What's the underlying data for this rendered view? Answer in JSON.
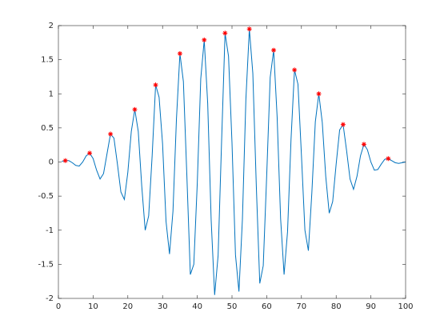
{
  "chart_data": {
    "type": "line",
    "xlim": [
      0,
      100
    ],
    "ylim": [
      -2,
      2
    ],
    "xticks": [
      0,
      10,
      20,
      30,
      40,
      50,
      60,
      70,
      80,
      90,
      100
    ],
    "yticks": [
      -2,
      -1.5,
      -1,
      -0.5,
      0,
      0.5,
      1,
      1.5,
      2
    ],
    "series": [
      {
        "color": "#0072bd",
        "marker": "none",
        "x": [
          1,
          2,
          3,
          4,
          5,
          6,
          7,
          8,
          9,
          10,
          11,
          12,
          13,
          14,
          15,
          16,
          17,
          18,
          19,
          20,
          21,
          22,
          23,
          24,
          25,
          26,
          27,
          28,
          29,
          30,
          31,
          32,
          33,
          34,
          35,
          36,
          37,
          38,
          39,
          40,
          41,
          42,
          43,
          44,
          45,
          46,
          47,
          48,
          49,
          50,
          51,
          52,
          53,
          54,
          55,
          56,
          57,
          58,
          59,
          60,
          61,
          62,
          63,
          64,
          65,
          66,
          67,
          68,
          69,
          70,
          71,
          72,
          73,
          74,
          75,
          76,
          77,
          78,
          79,
          80,
          81,
          82,
          83,
          84,
          85,
          86,
          87,
          88,
          89,
          90,
          91,
          92,
          93,
          94,
          95,
          96,
          97,
          98,
          99,
          100
        ],
        "values": [
          0.01,
          0.02,
          0.02,
          -0.01,
          -0.05,
          -0.06,
          0,
          0.09,
          0.13,
          0.05,
          -0.12,
          -0.25,
          -0.17,
          0.12,
          0.41,
          0.35,
          -0.03,
          -0.44,
          -0.55,
          -0.15,
          0.45,
          0.77,
          0.45,
          -0.35,
          -1.0,
          -0.79,
          0.09,
          1.13,
          0.95,
          0.27,
          -0.87,
          -1.35,
          -0.72,
          0.63,
          1.59,
          1.18,
          -0.2,
          -1.65,
          -1.5,
          -0.31,
          1.22,
          1.79,
          0.86,
          -0.85,
          -1.95,
          -1.37,
          0.3,
          1.89,
          1.55,
          0.28,
          -1.36,
          -1.9,
          -0.84,
          0.92,
          1.95,
          1.3,
          -0.35,
          -1.78,
          -1.52,
          -0.19,
          1.24,
          1.64,
          0.66,
          -0.83,
          -1.65,
          -1.02,
          0.33,
          1.35,
          1.14,
          0.1,
          -1.0,
          -1.3,
          -0.45,
          0.59,
          1.0,
          0.58,
          -0.21,
          -0.75,
          -0.58,
          -0.03,
          0.47,
          0.55,
          0.17,
          -0.25,
          -0.4,
          -0.21,
          0.09,
          0.26,
          0.18,
          0,
          -0.12,
          -0.11,
          -0.03,
          0.04,
          0.05,
          0.02,
          -0.01,
          -0.02,
          -0.01,
          0
        ]
      },
      {
        "color": "#ff0000",
        "marker": "asterisk",
        "x": [
          2,
          9,
          15,
          22,
          28,
          35,
          42,
          48,
          55,
          62,
          68,
          75,
          82,
          88,
          95
        ],
        "values": [
          0.02,
          0.13,
          0.41,
          0.77,
          1.13,
          1.59,
          1.79,
          1.89,
          1.95,
          1.64,
          1.35,
          1.0,
          0.55,
          0.26,
          0.05
        ]
      }
    ]
  }
}
